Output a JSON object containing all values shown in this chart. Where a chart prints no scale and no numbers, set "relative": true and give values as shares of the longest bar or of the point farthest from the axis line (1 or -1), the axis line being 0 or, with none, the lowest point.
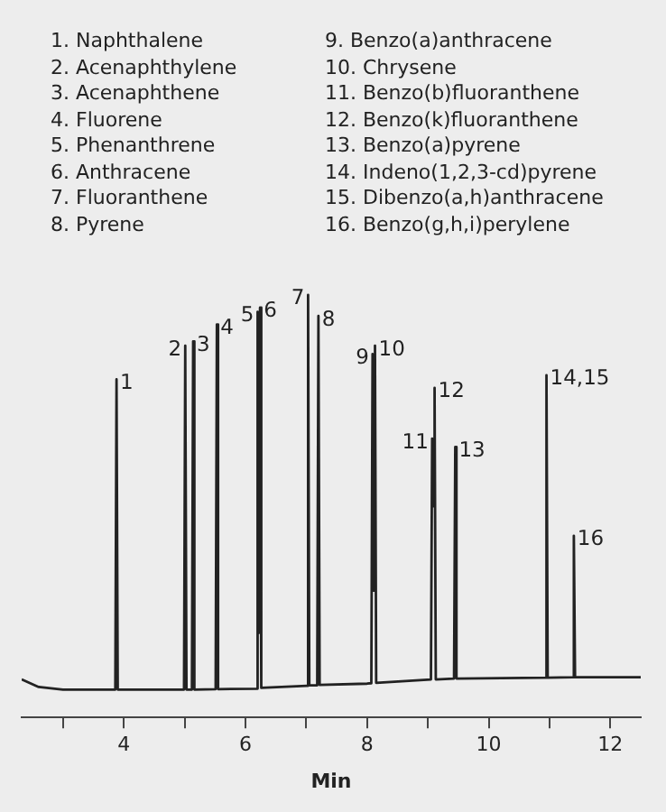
{
  "chart_data": {
    "type": "line",
    "relative": true,
    "xlabel": "Min",
    "xlim": [
      2.32,
      12.5
    ],
    "xticks": [
      {
        "value": 3,
        "label": null
      },
      4,
      {
        "value": 5,
        "label": null
      },
      6,
      {
        "value": 7,
        "label": null
      },
      8,
      {
        "value": 9,
        "label": null
      },
      10,
      {
        "value": 11,
        "label": null
      },
      12
    ],
    "grid": false,
    "legend": false,
    "marker": "none",
    "line_style": "solid",
    "series": [
      {
        "color": "#222222",
        "x": [
          2.32,
          2.6,
          3.0,
          3.86,
          3.88,
          3.9,
          4.99,
          5.01,
          5.03,
          5.12,
          5.14,
          5.16,
          5.51,
          5.53,
          5.55,
          6.18,
          6.2,
          6.22,
          6.24,
          6.26,
          7.01,
          7.03,
          7.05,
          7.18,
          7.2,
          7.22,
          8.0,
          8.07,
          8.09,
          8.11,
          8.13,
          8.15,
          9.05,
          9.07,
          9.09,
          9.11,
          9.13,
          9.43,
          9.45,
          9.47,
          10.93,
          10.95,
          10.97,
          11.38,
          11.4,
          11.42,
          12.5
        ],
        "values": [
          0.09,
          0.072,
          0.066,
          0.066,
          0.8,
          0.066,
          0.066,
          0.88,
          0.066,
          0.066,
          0.89,
          0.066,
          0.067,
          0.93,
          0.067,
          0.068,
          0.96,
          0.2,
          0.97,
          0.07,
          0.075,
          1,
          0.076,
          0.076,
          0.95,
          0.077,
          0.08,
          0.081,
          0.86,
          0.3,
          0.88,
          0.082,
          0.09,
          0.66,
          0.5,
          0.78,
          0.09,
          0.092,
          0.64,
          0.092,
          0.094,
          0.81,
          0.094,
          0.095,
          0.43,
          0.095,
          0.095
        ]
      }
    ],
    "annotations": [
      "1. Naphthalene",
      "2. Acenaphthylene",
      "3. Acenaphthene",
      "4. Fluorene",
      "5. Phenanthrene",
      "6. Anthracene",
      "7. Fluoranthene",
      "8. Pyrene",
      "9. Benzo(a)anthracene",
      "10. Chrysene",
      "11. Benzo(b)fluoranthene",
      "12. Benzo(k)fluoranthene",
      "13. Benzo(a)pyrene",
      "14. Indeno(1,2,3-cd)pyrene",
      "15. Dibenzo(a,h)anthracene",
      "16. Benzo(g,h,i)perylene",
      {
        "text": "1",
        "x": 3.88,
        "y": 0.8
      },
      {
        "text": "2",
        "x": 5.01,
        "y": 0.88
      },
      {
        "text": "3",
        "x": 5.14,
        "y": 0.89
      },
      {
        "text": "4",
        "x": 5.53,
        "y": 0.93
      },
      {
        "text": "5",
        "x": 6.2,
        "y": 0.96
      },
      {
        "text": "6",
        "x": 6.24,
        "y": 0.97
      },
      {
        "text": "7",
        "x": 7.03,
        "y": 1
      },
      {
        "text": "8",
        "x": 7.2,
        "y": 0.95
      },
      {
        "text": "9",
        "x": 8.09,
        "y": 0.86
      },
      {
        "text": "10",
        "x": 8.13,
        "y": 0.88
      },
      {
        "text": "11",
        "x": 9.07,
        "y": 0.66
      },
      {
        "text": "12",
        "x": 9.11,
        "y": 0.78
      },
      {
        "text": "13",
        "x": 9.45,
        "y": 0.64
      },
      {
        "text": "14,15",
        "x": 10.95,
        "y": 0.81
      },
      {
        "text": "16",
        "x": 11.4,
        "y": 0.43
      }
    ]
  }
}
